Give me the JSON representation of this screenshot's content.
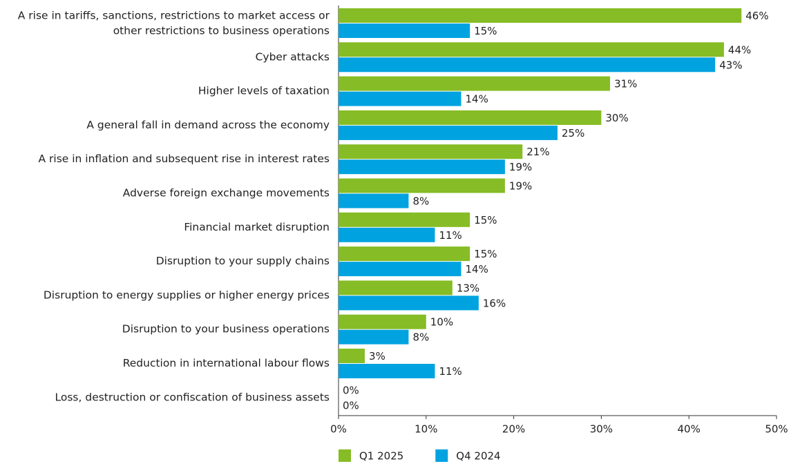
{
  "chart_data": {
    "type": "bar",
    "orientation": "horizontal",
    "categories": [
      "A rise in tariffs, sanctions, restrictions to market access or other restrictions to business operations",
      "Cyber attacks",
      "Higher levels of taxation",
      "A general fall in demand across the economy",
      "A rise in inflation and subsequent rise in interest rates",
      "Adverse foreign exchange movements",
      "Financial market disruption",
      "Disruption to your supply chains",
      "Disruption to energy supplies or higher energy prices",
      "Disruption to your business operations",
      "Reduction in international labour flows",
      "Loss, destruction or confiscation of business assets"
    ],
    "series": [
      {
        "name": "Q1 2025",
        "color": "#86bc25",
        "values": [
          46,
          44,
          31,
          30,
          21,
          19,
          15,
          15,
          13,
          10,
          3,
          0
        ],
        "value_labels": [
          "46%",
          "44%",
          "31%",
          "30%",
          "21%",
          "19%",
          "15%",
          "15%",
          "13%",
          "10%",
          "3%",
          "0%"
        ]
      },
      {
        "name": "Q4 2024",
        "color": "#00a3e0",
        "values": [
          15,
          43,
          14,
          25,
          19,
          8,
          11,
          14,
          16,
          8,
          11,
          0
        ],
        "value_labels": [
          "15%",
          "43%",
          "14%",
          "25%",
          "19%",
          "8%",
          "11%",
          "14%",
          "16%",
          "8%",
          "11%",
          "0%"
        ]
      }
    ],
    "xlim": [
      0,
      50
    ],
    "xticks": [
      {
        "value": 0,
        "label": "0%"
      },
      {
        "value": 10,
        "label": "10%"
      },
      {
        "value": 20,
        "label": "20%"
      },
      {
        "value": 30,
        "label": "30%"
      },
      {
        "value": 40,
        "label": "40%"
      },
      {
        "value": 50,
        "label": "50%"
      }
    ],
    "grid": false,
    "legend": "bottom"
  }
}
